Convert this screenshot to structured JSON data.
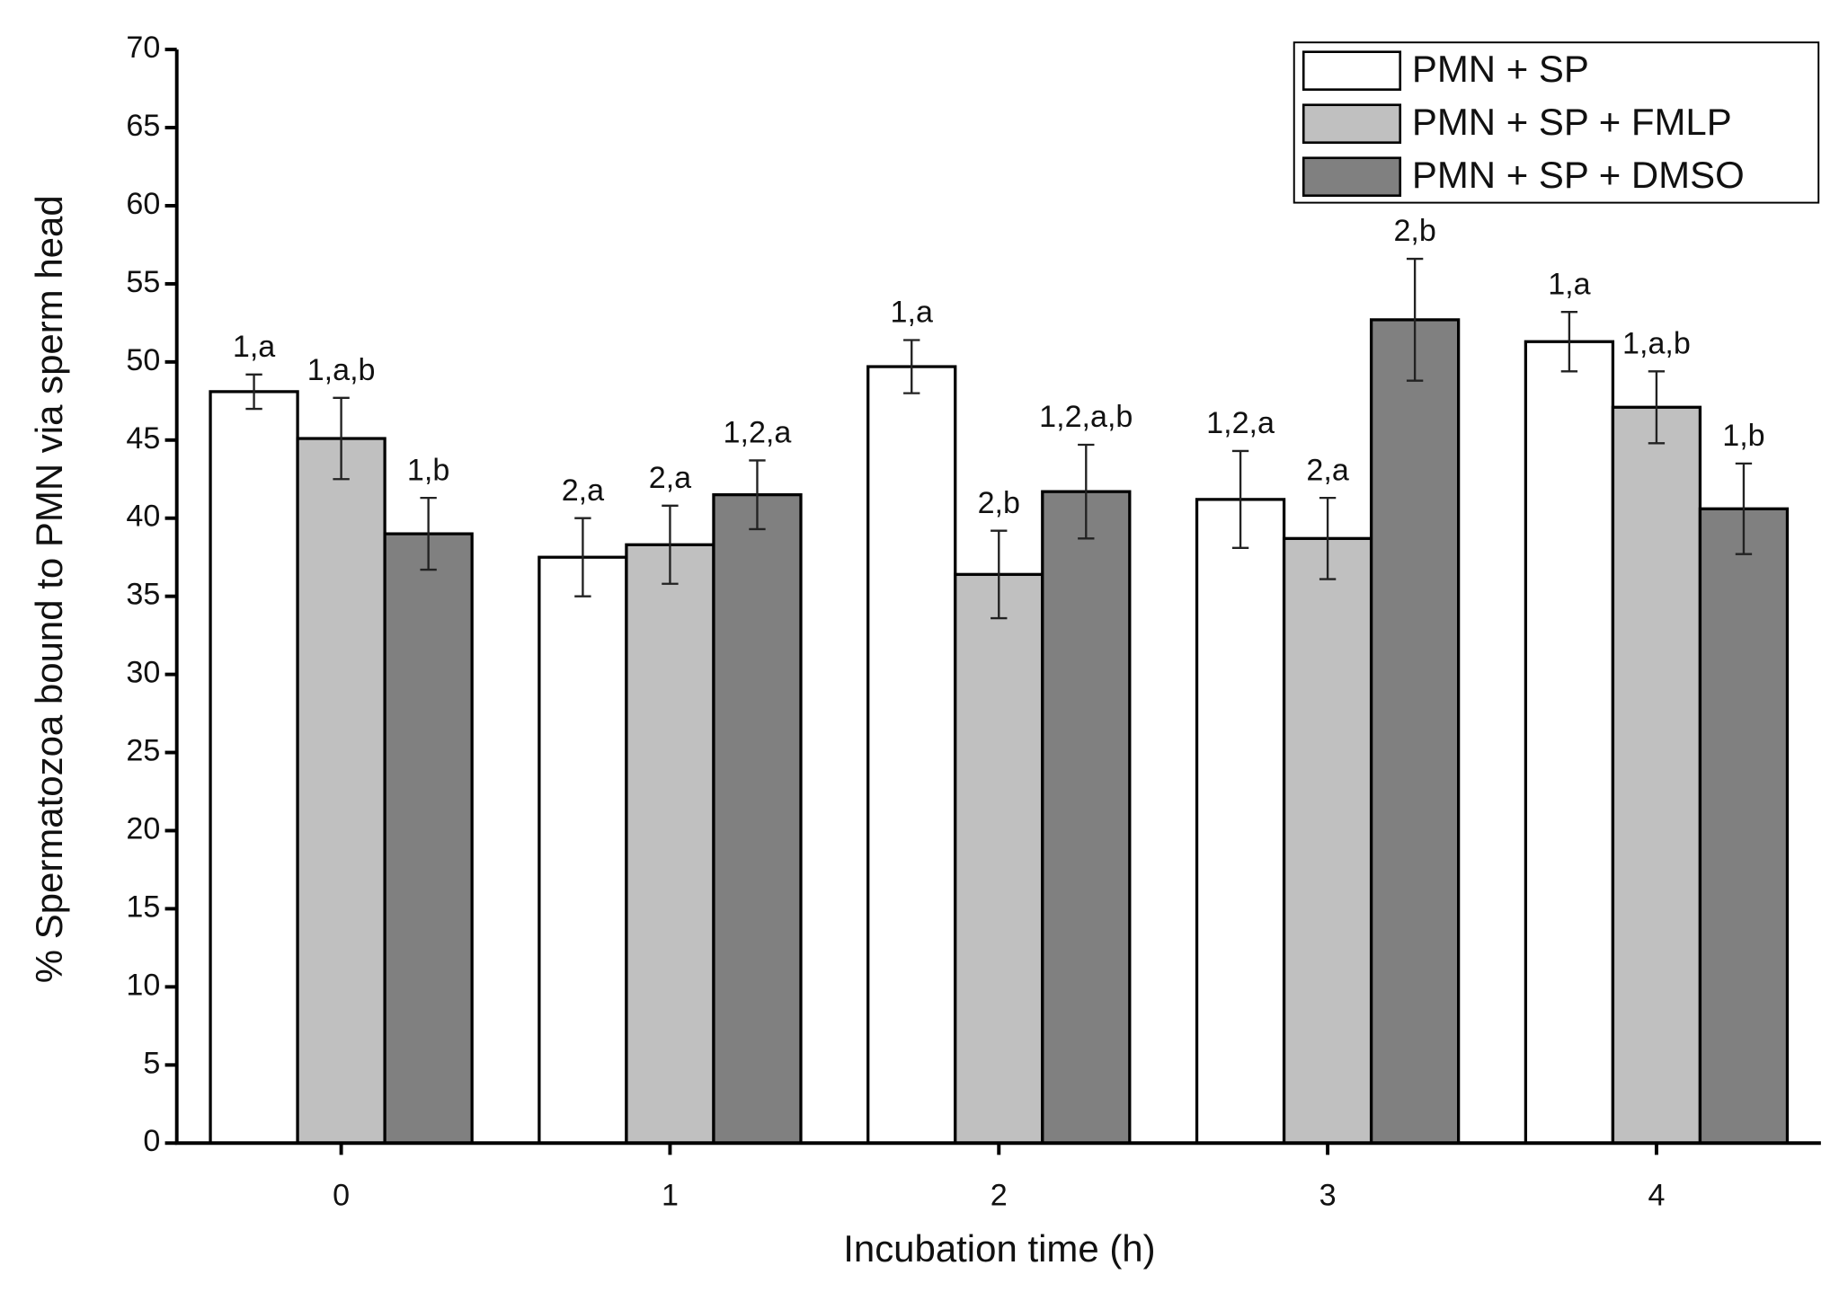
{
  "chart_data": {
    "type": "bar",
    "x_label": "Incubation time (h)",
    "y_label": "% Spermatozoa bound to PMN via sperm head",
    "categories": [
      "0",
      "1",
      "2",
      "3",
      "4"
    ],
    "series": [
      {
        "name": "PMN + SP",
        "color": "#ffffff",
        "values": [
          48.1,
          37.5,
          49.7,
          41.2,
          51.3
        ],
        "errors": [
          1.1,
          2.5,
          1.7,
          3.1,
          1.9
        ],
        "annotations": [
          "1,a",
          "2,a",
          "1,a",
          "1,2,a",
          "1,a"
        ]
      },
      {
        "name": "PMN + SP + FMLP",
        "color": "#c0c0c0",
        "values": [
          45.1,
          38.3,
          36.4,
          38.7,
          47.1
        ],
        "errors": [
          2.6,
          2.5,
          2.8,
          2.6,
          2.3
        ],
        "annotations": [
          "1,a,b",
          "2,a",
          "2,b",
          "2,a",
          "1,a,b"
        ]
      },
      {
        "name": "PMN + SP + DMSO",
        "color": "#808080",
        "values": [
          39.0,
          41.5,
          41.7,
          52.7,
          40.6
        ],
        "errors": [
          2.3,
          2.2,
          3.0,
          3.9,
          2.9
        ],
        "annotations": [
          "1,b",
          "1,2,a",
          "1,2,a,b",
          "2,b",
          "1,b"
        ]
      }
    ],
    "ylim": [
      0,
      70
    ],
    "yticks": [
      0,
      5,
      10,
      15,
      20,
      25,
      30,
      35,
      40,
      45,
      50,
      55,
      60,
      65,
      70
    ],
    "legend": "top-right"
  }
}
